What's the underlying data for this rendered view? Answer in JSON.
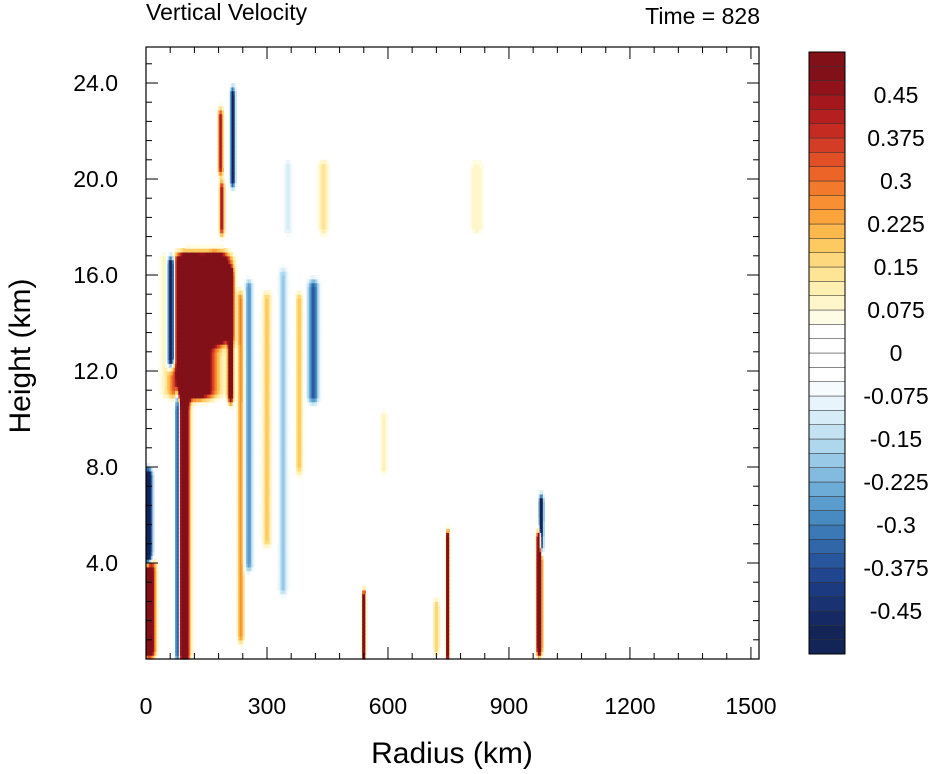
{
  "chart_data": {
    "type": "heatmap",
    "title": "Vertical Velocity",
    "subtitle": "Time = 828",
    "xlabel": "Radius (km)",
    "ylabel": "Height (km)",
    "xlim": [
      0,
      1520
    ],
    "ylim": [
      0,
      25.5
    ],
    "x_ticks": [
      0,
      300,
      600,
      900,
      1200,
      1500
    ],
    "x_tick_labels": [
      "0",
      "300",
      "600",
      "900",
      "1200",
      "1500"
    ],
    "y_ticks": [
      4,
      8,
      12,
      16,
      20,
      24
    ],
    "y_tick_labels": [
      "4.0",
      "8.0",
      "12.0",
      "16.0",
      "20.0",
      "24.0"
    ],
    "colorbar": {
      "levels": [
        -0.525,
        -0.5,
        -0.475,
        -0.45,
        -0.425,
        -0.4,
        -0.375,
        -0.35,
        -0.325,
        -0.3,
        -0.275,
        -0.25,
        -0.225,
        -0.2,
        -0.175,
        -0.15,
        -0.125,
        -0.1,
        -0.075,
        -0.05,
        -0.025,
        0,
        0.025,
        0.05,
        0.075,
        0.1,
        0.125,
        0.15,
        0.175,
        0.2,
        0.225,
        0.25,
        0.275,
        0.3,
        0.325,
        0.35,
        0.375,
        0.4,
        0.425,
        0.45,
        0.475,
        0.5,
        0.525
      ],
      "labels": [
        "0.45",
        "0.375",
        "0.3",
        "0.225",
        "0.15",
        "0.075",
        "0",
        "-0.075",
        "-0.15",
        "-0.225",
        "-0.3",
        "-0.375",
        "-0.45"
      ],
      "label_values": [
        0.45,
        0.375,
        0.3,
        0.225,
        0.15,
        0.075,
        0,
        -0.075,
        -0.15,
        -0.225,
        -0.3,
        -0.375,
        -0.45
      ],
      "color_positive": [
        "#fffce6",
        "#fff6cc",
        "#ffefb0",
        "#fee596",
        "#fdd87c",
        "#fdca62",
        "#fcb84c",
        "#fba43c",
        "#f88f32",
        "#f37a2c",
        "#ec6428",
        "#e04f26",
        "#d43d25",
        "#c62b22",
        "#b51f20",
        "#a3171d",
        "#92121b",
        "#821018"
      ],
      "color_negative": [
        "#f6fbfe",
        "#e8f4fb",
        "#d6ecf7",
        "#c3e2f2",
        "#aed6ed",
        "#98c9e6",
        "#82bbdf",
        "#6cacd7",
        "#599ccd",
        "#488bc2",
        "#3b79b6",
        "#3167a9",
        "#28569c",
        "#21468f",
        "#1b3a80",
        "#183272",
        "#152a64",
        "#132457"
      ]
    },
    "features": [
      {
        "r": 95,
        "z0": 0.2,
        "z1": 16.4,
        "hw": 12,
        "amp": 1.0
      },
      {
        "r": 118,
        "z0": 11.2,
        "z1": 16.6,
        "hw": 50,
        "amp": 1.0
      },
      {
        "r": 178,
        "z0": 13.5,
        "z1": 16.6,
        "hw": 28,
        "amp": 0.95
      },
      {
        "r": 62,
        "z0": 12.5,
        "z1": 16.5,
        "hw": 9,
        "amp": -0.85
      },
      {
        "r": 78,
        "z0": 0.2,
        "z1": 11.0,
        "hw": 6,
        "amp": -0.5
      },
      {
        "r": 8,
        "z0": 0.4,
        "z1": 3.8,
        "hw": 14,
        "amp": 0.85
      },
      {
        "r": 5,
        "z0": 4.2,
        "z1": 7.6,
        "hw": 10,
        "amp": -0.85
      },
      {
        "r": 210,
        "z0": 11.0,
        "z1": 16.0,
        "hw": 7,
        "amp": 0.7
      },
      {
        "r": 215,
        "z0": 20.0,
        "z1": 23.5,
        "hw": 6,
        "amp": -0.6
      },
      {
        "r": 185,
        "z0": 20.5,
        "z1": 22.6,
        "hw": 6,
        "amp": 0.5
      },
      {
        "r": 188,
        "z0": 18.0,
        "z1": 19.6,
        "hw": 6,
        "amp": 0.5
      },
      {
        "r": 255,
        "z0": 4.0,
        "z1": 15.5,
        "hw": 10,
        "amp": -0.3
      },
      {
        "r": 235,
        "z0": 1.0,
        "z1": 15.0,
        "hw": 8,
        "amp": 0.3
      },
      {
        "r": 300,
        "z0": 5.0,
        "z1": 15.0,
        "hw": 12,
        "amp": 0.2
      },
      {
        "r": 340,
        "z0": 3.0,
        "z1": 16.0,
        "hw": 12,
        "amp": -0.2
      },
      {
        "r": 415,
        "z0": 11.0,
        "z1": 15.5,
        "hw": 14,
        "amp": -0.4
      },
      {
        "r": 380,
        "z0": 8.0,
        "z1": 15.0,
        "hw": 10,
        "amp": 0.2
      },
      {
        "r": 440,
        "z0": 18.0,
        "z1": 20.5,
        "hw": 14,
        "amp": 0.15
      },
      {
        "r": 352,
        "z0": 18.0,
        "z1": 20.5,
        "hw": 14,
        "amp": -0.12
      },
      {
        "r": 590,
        "z0": 8.0,
        "z1": 10.0,
        "hw": 10,
        "amp": 0.12
      },
      {
        "r": 540,
        "z0": 0.3,
        "z1": 2.5,
        "hw": 4,
        "amp": 0.9
      },
      {
        "r": 748,
        "z0": 0.3,
        "z1": 5.0,
        "hw": 4,
        "amp": 0.9
      },
      {
        "r": 975,
        "z0": 0.5,
        "z1": 5.0,
        "hw": 6,
        "amp": 1.0
      },
      {
        "r": 980,
        "z0": 4.8,
        "z1": 6.5,
        "hw": 5,
        "amp": -0.8
      },
      {
        "r": 720,
        "z0": 0.5,
        "z1": 2.2,
        "hw": 8,
        "amp": 0.2
      },
      {
        "r": 820,
        "z0": 18.0,
        "z1": 20.5,
        "hw": 20,
        "amp": 0.1
      }
    ]
  }
}
